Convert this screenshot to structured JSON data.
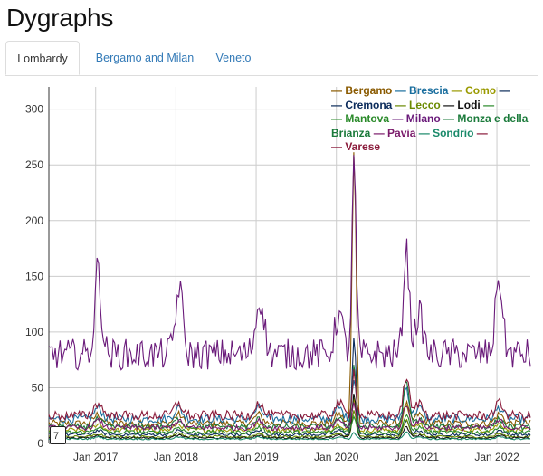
{
  "page": {
    "title": "Dygraphs"
  },
  "tabs": [
    {
      "label": "Lombardy",
      "active": true
    },
    {
      "label": "Bergamo and Milan",
      "active": false
    },
    {
      "label": "Veneto",
      "active": false
    }
  ],
  "range_selector": {
    "value": "7"
  },
  "chart_data": {
    "type": "line",
    "title": "",
    "xlabel": "",
    "ylabel": "",
    "ylim": [
      0,
      320
    ],
    "y_ticks": [
      0,
      50,
      100,
      150,
      200,
      250,
      300
    ],
    "x_range": [
      "2016-06",
      "2022-06"
    ],
    "x_ticks": [
      "Jan 2017",
      "Jan 2018",
      "Jan 2019",
      "Jan 2020",
      "Jan 2021",
      "Jan 2022"
    ],
    "grid": true,
    "legend_position": "top-right",
    "series": [
      {
        "name": "Bergamo",
        "color": "#8a5a00",
        "base": 18,
        "peak_2020": 265,
        "peak_2020b": 35
      },
      {
        "name": "Brescia",
        "color": "#1a6e9e",
        "base": 22,
        "peak_2020": 60,
        "peak_2020b": 50
      },
      {
        "name": "Como",
        "color": "#9a9a00",
        "base": 12,
        "peak_2020": 40,
        "peak_2020b": 35
      },
      {
        "name": "Cremona",
        "color": "#0a2a5a",
        "base": 8,
        "peak_2020": 95,
        "peak_2020b": 20
      },
      {
        "name": "Lecco",
        "color": "#6a8a00",
        "base": 6,
        "peak_2020": 30,
        "peak_2020b": 22
      },
      {
        "name": "Lodi",
        "color": "#111111",
        "base": 5,
        "peak_2020": 45,
        "peak_2020b": 15
      },
      {
        "name": "Mantova",
        "color": "#2a8a2a",
        "base": 10,
        "peak_2020": 25,
        "peak_2020b": 25
      },
      {
        "name": "Milano",
        "color": "#6a1a7a",
        "base": 80,
        "peak_2020": 255,
        "peak_2020b": 175
      },
      {
        "name": "Monza e della Brianza",
        "color": "#1a7a3a",
        "base": 15,
        "peak_2020": 70,
        "peak_2020b": 55
      },
      {
        "name": "Pavia",
        "color": "#7a1a6a",
        "base": 14,
        "peak_2020": 35,
        "peak_2020b": 35
      },
      {
        "name": "Sondrio",
        "color": "#1a8a6a",
        "base": 4,
        "peak_2020": 10,
        "peak_2020b": 10
      },
      {
        "name": "Varese",
        "color": "#8a1a3a",
        "base": 25,
        "peak_2020": 65,
        "peak_2020b": 60
      }
    ],
    "legend_lines": [
      [
        "Bergamo",
        "Brescia",
        "Como"
      ],
      [
        "Cremona",
        "Lecco",
        "Lodi"
      ],
      [
        "Mantova",
        "Milano",
        "Monza e della"
      ],
      [
        "Brianza",
        "Pavia",
        "Sondrio"
      ],
      [
        "Varese"
      ]
    ]
  }
}
